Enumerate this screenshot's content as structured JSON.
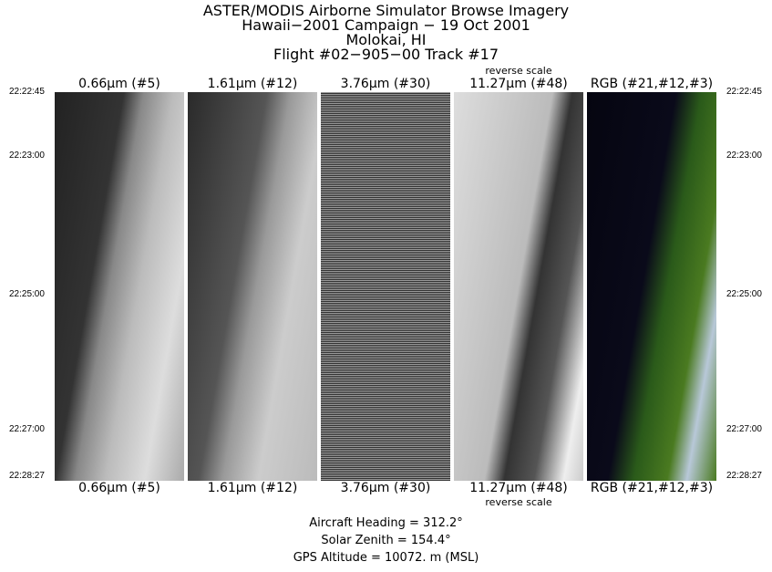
{
  "title_lines": [
    "ASTER/MODIS Airborne Simulator Browse Imagery",
    "Hawaii−2001 Campaign − 19 Oct 2001",
    "Molokai, HI",
    "Flight #02−905−00 Track #17"
  ],
  "panels": [
    {
      "label": "0.66μm (#5)",
      "note": ""
    },
    {
      "label": "1.61μm (#12)",
      "note": ""
    },
    {
      "label": "3.76μm (#30)",
      "note": ""
    },
    {
      "label": "11.27μm (#48)",
      "note": "reverse scale"
    },
    {
      "label": "RGB (#21,#12,#3)",
      "note": ""
    }
  ],
  "times": [
    "22:22:45",
    "22:23:00",
    "22:25:00",
    "22:27:00",
    "22:28:27"
  ],
  "info": {
    "heading": "Aircraft Heading =  312.2°",
    "zenith": "Solar Zenith =  154.4°",
    "altitude": "GPS Altitude =  10072. m (MSL)"
  }
}
